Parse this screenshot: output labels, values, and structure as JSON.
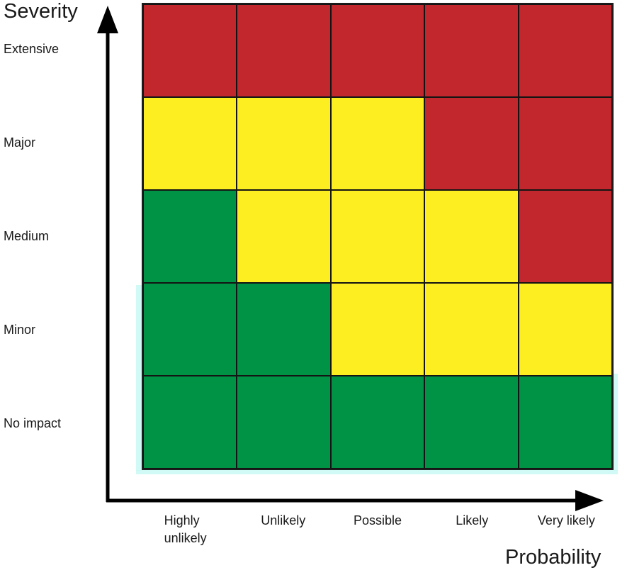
{
  "chart_data": {
    "type": "heatmap",
    "ylabel": "Severity",
    "xlabel": "Probability",
    "rows": [
      "Extensive",
      "Major",
      "Medium",
      "Minor",
      "No impact"
    ],
    "columns": [
      "Highly unlikely",
      "Unlikely",
      "Possible",
      "Likely",
      "Very likely"
    ],
    "cells": [
      [
        "red",
        "red",
        "red",
        "red",
        "red"
      ],
      [
        "yellow",
        "yellow",
        "yellow",
        "red",
        "red"
      ],
      [
        "green",
        "yellow",
        "yellow",
        "yellow",
        "red"
      ],
      [
        "green",
        "green",
        "yellow",
        "yellow",
        "yellow"
      ],
      [
        "green",
        "green",
        "green",
        "green",
        "green"
      ]
    ],
    "colors": {
      "red": "#C1272D",
      "yellow": "#FCEE21",
      "green": "#009245"
    },
    "layout": {
      "grid_lines": "on",
      "legend": "none",
      "axis_color": "#000000",
      "grid_line_color": "#141414"
    }
  }
}
